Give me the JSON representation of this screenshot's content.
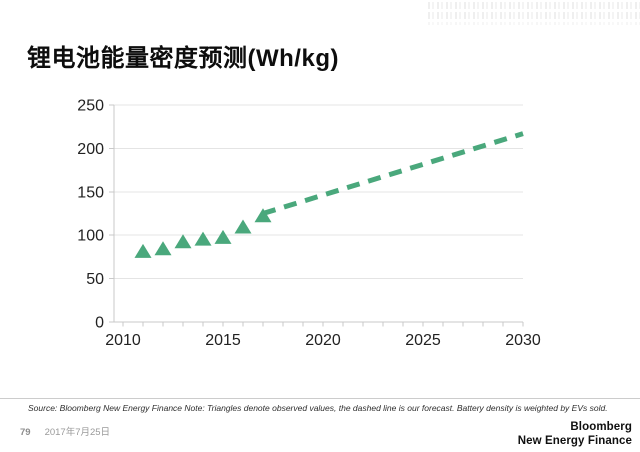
{
  "header": {
    "title": "锂电池能量密度预测(Wh/kg)"
  },
  "chart_data": {
    "type": "scatter",
    "title": "锂电池能量密度预测(Wh/kg)",
    "unit": "Wh/kg",
    "xlim": [
      2010,
      2030
    ],
    "ylim": [
      0,
      250
    ],
    "yticks": [
      0,
      50,
      100,
      150,
      200,
      250
    ],
    "xticks": [
      2010,
      2015,
      2020,
      2025,
      2030
    ],
    "minor_xtick_step": 1,
    "grid": "horizontal",
    "accent_color": "#4aa87c",
    "legend_position": "none",
    "series": [
      {
        "name": "observed",
        "marker": "triangle",
        "color": "#4aa87c",
        "points": [
          [
            2011,
            82
          ],
          [
            2012,
            85
          ],
          [
            2013,
            93
          ],
          [
            2014,
            96
          ],
          [
            2015,
            98
          ],
          [
            2016,
            110
          ],
          [
            2017,
            123
          ]
        ]
      },
      {
        "name": "forecast",
        "style": "dashed-line",
        "color": "#4aa87c",
        "points": [
          [
            2017,
            125
          ],
          [
            2030,
            217
          ]
        ]
      }
    ]
  },
  "footnote": {
    "source": "Source: Bloomberg New Energy Finance Note: Triangles denote observed values, the dashed line is our forecast. Battery density is weighted by EVs sold."
  },
  "footer": {
    "page_number": "79",
    "date": "2017年7月25日",
    "logo_line1": "Bloomberg",
    "logo_line2": "New Energy Finance"
  }
}
